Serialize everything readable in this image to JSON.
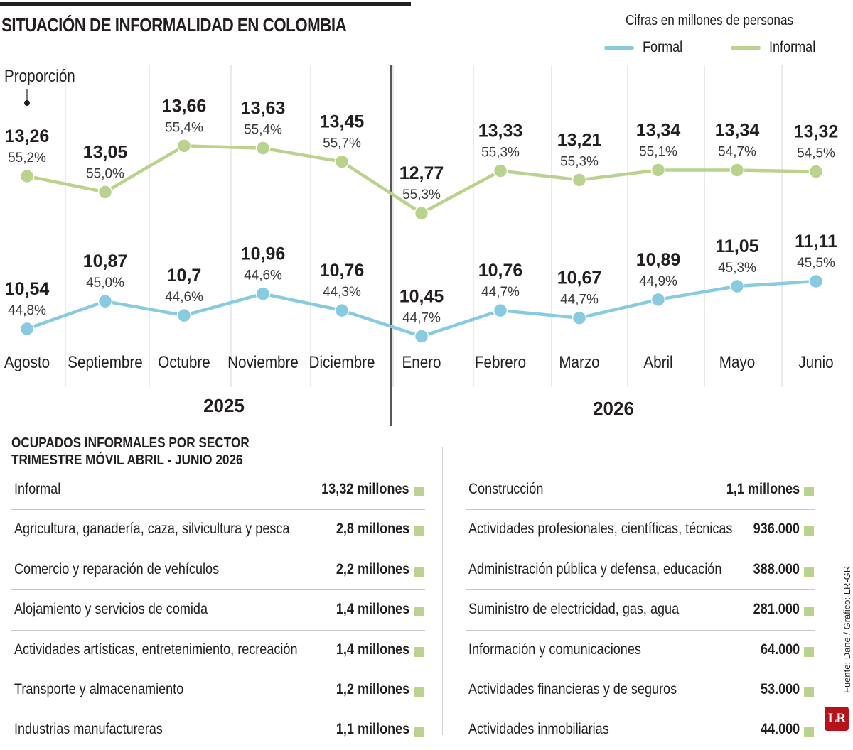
{
  "title": "SITUACIÓN DE INFORMALIDAD EN COLOMBIA",
  "units_note": "Cifras en millones de personas",
  "proportion_label": "Proporción",
  "colors": {
    "formal": "#88cbe0",
    "informal": "#b9d38e",
    "text": "#231f20",
    "brand": "#b5121b"
  },
  "chart_data": {
    "type": "line",
    "categories": [
      "Agosto",
      "Septiembre",
      "Octubre",
      "Noviembre",
      "Diciembre",
      "Enero",
      "Febrero",
      "Marzo",
      "Abril",
      "Mayo",
      "Junio"
    ],
    "years": [
      {
        "label": "2025",
        "start": 0,
        "end": 4
      },
      {
        "label": "2026",
        "start": 5,
        "end": 10
      }
    ],
    "series": [
      {
        "name": "Formal",
        "values": [
          10.54,
          10.87,
          10.7,
          10.96,
          10.76,
          10.45,
          10.76,
          10.67,
          10.89,
          11.05,
          11.11
        ],
        "value_labels": [
          "10,54",
          "10,87",
          "10,7",
          "10,96",
          "10,76",
          "10,45",
          "10,76",
          "10,67",
          "10,89",
          "11,05",
          "11,11"
        ],
        "pct_labels": [
          "44,8%",
          "45,0%",
          "44,6%",
          "44,6%",
          "44,3%",
          "44,7%",
          "44,7%",
          "44,7%",
          "44,9%",
          "45,3%",
          "45,5%"
        ]
      },
      {
        "name": "Informal",
        "values": [
          13.26,
          13.05,
          13.66,
          13.63,
          13.45,
          12.77,
          13.33,
          13.21,
          13.34,
          13.34,
          13.32
        ],
        "value_labels": [
          "13,26",
          "13,05",
          "13,66",
          "13,63",
          "13,45",
          "12,77",
          "13,33",
          "13,21",
          "13,34",
          "13,34",
          "13,32"
        ],
        "pct_labels": [
          "55,2%",
          "55,0%",
          "55,4%",
          "55,4%",
          "55,7%",
          "55,3%",
          "55,3%",
          "55,3%",
          "55,1%",
          "54,7%",
          "54,5%"
        ]
      }
    ],
    "grid": "vertical",
    "legend": "top-right"
  },
  "table": {
    "title_lines": [
      "OCUPADOS INFORMALES POR SECTOR",
      "TRIMESTRE MÓVIL ABRIL - JUNIO 2026"
    ],
    "left": [
      {
        "label": "Informal",
        "value": "13,32 millones"
      },
      {
        "label": "Agricultura, ganadería, caza, silvicultura y pesca",
        "value": "2,8 millones"
      },
      {
        "label": "Comercio y reparación de vehículos",
        "value": "2,2 millones"
      },
      {
        "label": "Alojamiento y servicios de comida",
        "value": "1,4 millones"
      },
      {
        "label": "Actividades artísticas, entretenimiento, recreación",
        "value": "1,4 millones"
      },
      {
        "label": "Transporte y almacenamiento",
        "value": "1,2 millones"
      },
      {
        "label": "Industrias manufactureras",
        "value": "1,1 millones"
      }
    ],
    "right": [
      {
        "label": "Construcción",
        "value": "1,1 millones"
      },
      {
        "label": "Actividades profesionales, científicas, técnicas",
        "value": "936.000"
      },
      {
        "label": "Administración pública y defensa, educación",
        "value": "388.000"
      },
      {
        "label": "Suministro de electricidad, gas, agua",
        "value": "281.000"
      },
      {
        "label": "Información y comunicaciones",
        "value": "64.000"
      },
      {
        "label": "Actividades financieras y de seguros",
        "value": "53.000"
      },
      {
        "label": "Actividades inmobiliarias",
        "value": "44.000"
      }
    ]
  },
  "source": "Fuente: Dane / Gráfico: LR-GR",
  "logo_text": "LR"
}
